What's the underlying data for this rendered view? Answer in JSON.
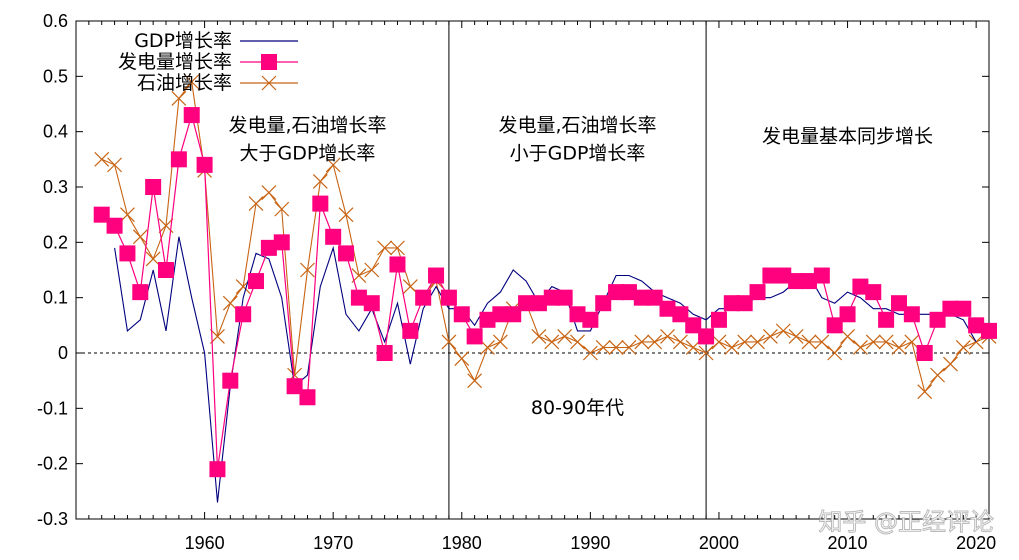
{
  "chart_data": {
    "type": "line",
    "title": "",
    "xlabel": "",
    "ylabel": "",
    "xlim": [
      1950,
      2021
    ],
    "ylim": [
      -0.3,
      0.6
    ],
    "x_ticks": [
      1960,
      1970,
      1980,
      1990,
      2000,
      2010,
      2020
    ],
    "y_ticks": [
      -0.3,
      -0.2,
      -0.1,
      0,
      0.1,
      0.2,
      0.3,
      0.4,
      0.5,
      0.6
    ],
    "x_tick_labels": [
      "1960",
      "1970",
      "1980",
      "1990",
      "2000",
      "2010",
      "2020"
    ],
    "y_tick_labels": [
      "-0.3",
      "-0.2",
      "-0.1",
      "0",
      "0.1",
      "0.2",
      "0.3",
      "0.4",
      "0.5",
      "0.6"
    ],
    "grid": false,
    "zero_line": "dashed",
    "legend_position": "top-left",
    "divider_years": [
      1979,
      1999
    ],
    "series": [
      {
        "name": "GDP增长率",
        "color": "#00007f",
        "marker": "none",
        "points": [
          [
            1953,
            0.19
          ],
          [
            1954,
            0.04
          ],
          [
            1955,
            0.06
          ],
          [
            1956,
            0.15
          ],
          [
            1957,
            0.04
          ],
          [
            1958,
            0.21
          ],
          [
            1959,
            0.1
          ],
          [
            1960,
            0.0
          ],
          [
            1961,
            -0.27
          ],
          [
            1962,
            -0.06
          ],
          [
            1963,
            0.1
          ],
          [
            1964,
            0.18
          ],
          [
            1965,
            0.17
          ],
          [
            1966,
            0.1
          ],
          [
            1967,
            -0.06
          ],
          [
            1968,
            -0.04
          ],
          [
            1969,
            0.12
          ],
          [
            1970,
            0.19
          ],
          [
            1971,
            0.07
          ],
          [
            1972,
            0.04
          ],
          [
            1973,
            0.08
          ],
          [
            1974,
            0.02
          ],
          [
            1975,
            0.09
          ],
          [
            1976,
            -0.02
          ],
          [
            1977,
            0.08
          ],
          [
            1978,
            0.12
          ],
          [
            1979,
            0.08
          ],
          [
            1980,
            0.08
          ],
          [
            1981,
            0.05
          ],
          [
            1982,
            0.09
          ],
          [
            1983,
            0.11
          ],
          [
            1984,
            0.15
          ],
          [
            1985,
            0.13
          ],
          [
            1986,
            0.09
          ],
          [
            1987,
            0.12
          ],
          [
            1988,
            0.11
          ],
          [
            1989,
            0.04
          ],
          [
            1990,
            0.04
          ],
          [
            1991,
            0.09
          ],
          [
            1992,
            0.14
          ],
          [
            1993,
            0.14
          ],
          [
            1994,
            0.13
          ],
          [
            1995,
            0.11
          ],
          [
            1996,
            0.1
          ],
          [
            1997,
            0.09
          ],
          [
            1998,
            0.07
          ],
          [
            1999,
            0.06
          ],
          [
            2000,
            0.08
          ],
          [
            2001,
            0.08
          ],
          [
            2002,
            0.09
          ],
          [
            2003,
            0.1
          ],
          [
            2004,
            0.1
          ],
          [
            2005,
            0.11
          ],
          [
            2006,
            0.13
          ],
          [
            2007,
            0.14
          ],
          [
            2008,
            0.1
          ],
          [
            2009,
            0.09
          ],
          [
            2010,
            0.11
          ],
          [
            2011,
            0.1
          ],
          [
            2012,
            0.08
          ],
          [
            2013,
            0.08
          ],
          [
            2014,
            0.07
          ],
          [
            2015,
            0.07
          ],
          [
            2016,
            0.07
          ],
          [
            2017,
            0.07
          ],
          [
            2018,
            0.07
          ],
          [
            2019,
            0.06
          ],
          [
            2020,
            0.02
          ]
        ]
      },
      {
        "name": "发电量增长率",
        "color": "#ff007f",
        "marker": "square",
        "points": [
          [
            1952,
            0.25
          ],
          [
            1953,
            0.23
          ],
          [
            1954,
            0.18
          ],
          [
            1955,
            0.11
          ],
          [
            1956,
            0.3
          ],
          [
            1957,
            0.15
          ],
          [
            1958,
            0.35
          ],
          [
            1959,
            0.43
          ],
          [
            1960,
            0.34
          ],
          [
            1961,
            -0.21
          ],
          [
            1962,
            -0.05
          ],
          [
            1963,
            0.07
          ],
          [
            1964,
            0.13
          ],
          [
            1965,
            0.19
          ],
          [
            1966,
            0.2
          ],
          [
            1967,
            -0.06
          ],
          [
            1968,
            -0.08
          ],
          [
            1969,
            0.27
          ],
          [
            1970,
            0.21
          ],
          [
            1971,
            0.18
          ],
          [
            1972,
            0.1
          ],
          [
            1973,
            0.09
          ],
          [
            1974,
            0.0
          ],
          [
            1975,
            0.16
          ],
          [
            1976,
            0.04
          ],
          [
            1977,
            0.1
          ],
          [
            1978,
            0.14
          ],
          [
            1979,
            0.1
          ],
          [
            1980,
            0.07
          ],
          [
            1981,
            0.03
          ],
          [
            1982,
            0.06
          ],
          [
            1983,
            0.07
          ],
          [
            1984,
            0.07
          ],
          [
            1985,
            0.09
          ],
          [
            1986,
            0.09
          ],
          [
            1987,
            0.1
          ],
          [
            1988,
            0.1
          ],
          [
            1989,
            0.07
          ],
          [
            1990,
            0.06
          ],
          [
            1991,
            0.09
          ],
          [
            1992,
            0.11
          ],
          [
            1993,
            0.11
          ],
          [
            1994,
            0.1
          ],
          [
            1995,
            0.1
          ],
          [
            1996,
            0.08
          ],
          [
            1997,
            0.07
          ],
          [
            1998,
            0.05
          ],
          [
            1999,
            0.03
          ],
          [
            2000,
            0.06
          ],
          [
            2001,
            0.09
          ],
          [
            2002,
            0.09
          ],
          [
            2003,
            0.11
          ],
          [
            2004,
            0.14
          ],
          [
            2005,
            0.14
          ],
          [
            2006,
            0.13
          ],
          [
            2007,
            0.13
          ],
          [
            2008,
            0.14
          ],
          [
            2009,
            0.05
          ],
          [
            2010,
            0.07
          ],
          [
            2011,
            0.12
          ],
          [
            2012,
            0.11
          ],
          [
            2013,
            0.06
          ],
          [
            2014,
            0.09
          ],
          [
            2015,
            0.07
          ],
          [
            2016,
            0.0
          ],
          [
            2017,
            0.06
          ],
          [
            2018,
            0.08
          ],
          [
            2019,
            0.08
          ],
          [
            2020,
            0.05
          ],
          [
            2021,
            0.04
          ]
        ]
      },
      {
        "name": "石油增长率",
        "color": "#c86414",
        "marker": "cross",
        "points": [
          [
            1952,
            0.35
          ],
          [
            1953,
            0.34
          ],
          [
            1954,
            0.25
          ],
          [
            1955,
            0.21
          ],
          [
            1956,
            0.17
          ],
          [
            1957,
            0.23
          ],
          [
            1958,
            0.46
          ],
          [
            1959,
            0.49
          ],
          [
            1960,
            0.33
          ],
          [
            1961,
            0.03
          ],
          [
            1962,
            0.09
          ],
          [
            1963,
            0.12
          ],
          [
            1964,
            0.27
          ],
          [
            1965,
            0.29
          ],
          [
            1966,
            0.26
          ],
          [
            1967,
            -0.04
          ],
          [
            1968,
            0.15
          ],
          [
            1969,
            0.31
          ],
          [
            1970,
            0.34
          ],
          [
            1971,
            0.25
          ],
          [
            1972,
            0.14
          ],
          [
            1973,
            0.15
          ],
          [
            1974,
            0.19
          ],
          [
            1975,
            0.19
          ],
          [
            1976,
            0.12
          ],
          [
            1977,
            0.1
          ],
          [
            1978,
            0.13
          ],
          [
            1979,
            0.02
          ],
          [
            1980,
            -0.01
          ],
          [
            1981,
            -0.05
          ],
          [
            1982,
            0.01
          ],
          [
            1983,
            0.02
          ],
          [
            1984,
            0.08
          ],
          [
            1985,
            0.09
          ],
          [
            1986,
            0.03
          ],
          [
            1987,
            0.02
          ],
          [
            1988,
            0.03
          ],
          [
            1989,
            0.02
          ],
          [
            1990,
            0.0
          ],
          [
            1991,
            0.01
          ],
          [
            1992,
            0.01
          ],
          [
            1993,
            0.01
          ],
          [
            1994,
            0.02
          ],
          [
            1995,
            0.02
          ],
          [
            1996,
            0.03
          ],
          [
            1997,
            0.02
          ],
          [
            1998,
            0.01
          ],
          [
            1999,
            0.0
          ],
          [
            2000,
            0.02
          ],
          [
            2001,
            0.01
          ],
          [
            2002,
            0.02
          ],
          [
            2003,
            0.02
          ],
          [
            2004,
            0.03
          ],
          [
            2005,
            0.04
          ],
          [
            2006,
            0.03
          ],
          [
            2007,
            0.02
          ],
          [
            2008,
            0.02
          ],
          [
            2009,
            0.0
          ],
          [
            2010,
            0.03
          ],
          [
            2011,
            0.01
          ],
          [
            2012,
            0.02
          ],
          [
            2013,
            0.02
          ],
          [
            2014,
            0.01
          ],
          [
            2015,
            0.02
          ],
          [
            2016,
            -0.07
          ],
          [
            2017,
            -0.04
          ],
          [
            2018,
            -0.02
          ],
          [
            2019,
            0.01
          ],
          [
            2020,
            0.02
          ],
          [
            2021,
            0.03
          ]
        ]
      }
    ],
    "annotations": [
      {
        "id": "period-1",
        "lines": [
          "发电量,石油增长率",
          "大于GDP增长率"
        ],
        "x": 1968,
        "y": 0.4
      },
      {
        "id": "period-2",
        "lines": [
          "发电量,石油增长率",
          "小于GDP增长率"
        ],
        "x": 1989,
        "y": 0.4
      },
      {
        "id": "period-3",
        "lines": [
          "发电量基本同步增长"
        ],
        "x": 2010,
        "y": 0.38
      },
      {
        "id": "period-label",
        "lines": [
          "80-90年代"
        ],
        "x": 1989,
        "y": -0.11
      }
    ]
  },
  "watermark": "知乎 @正经评论"
}
